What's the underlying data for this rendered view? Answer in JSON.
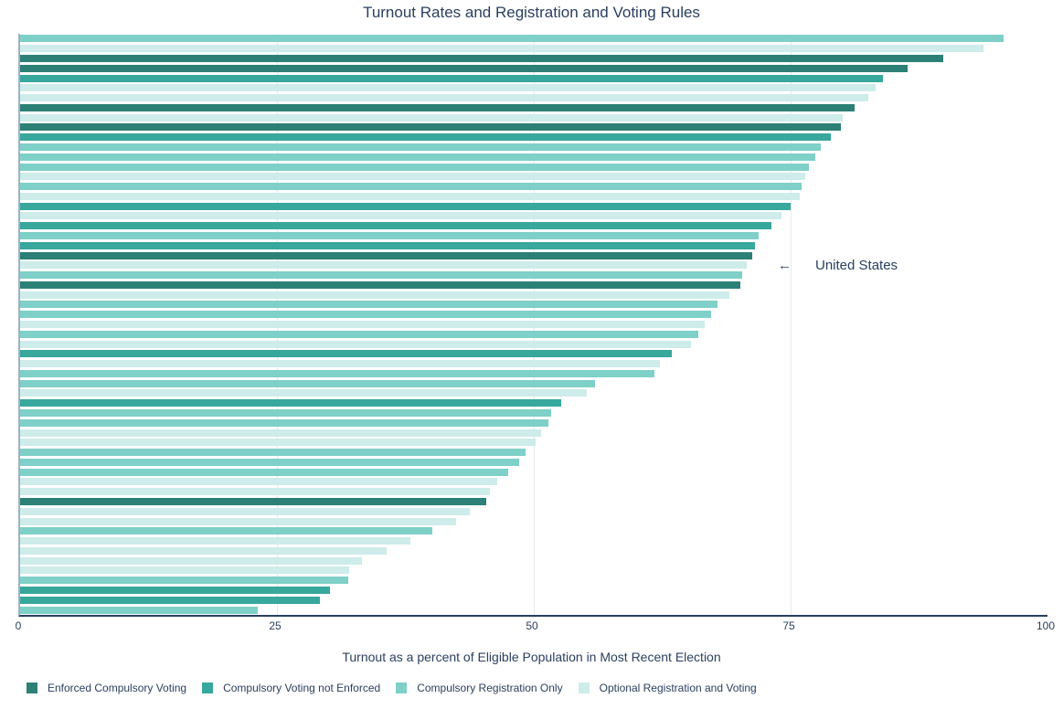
{
  "title": "Turnout Rates and Registration and Voting Rules",
  "annotation": {
    "arrow": "←",
    "label": "United States"
  },
  "x_axis": {
    "title": "Turnout as a percent of Eligible Population in Most Recent Election",
    "tick_labels": [
      "0",
      "25",
      "50",
      "75",
      "100"
    ],
    "tick_values": [
      0,
      25,
      50,
      75,
      100
    ]
  },
  "legend": [
    {
      "key": "c1",
      "label": "Enforced Compulsory Voting",
      "color": "#2c8076"
    },
    {
      "key": "c2",
      "label": "Compulsory Voting not Enforced",
      "color": "#38a79c"
    },
    {
      "key": "c3",
      "label": "Compulsory Registration Only",
      "color": "#7ed0c8"
    },
    {
      "key": "c4",
      "label": "Optional Registration and Voting",
      "color": "#cdecea"
    }
  ],
  "colors": {
    "text": "#2a3f5f",
    "axis_line": "#2a3f5f",
    "y_axis_line": "#9fb0c6",
    "gridline": "#e7e9ec",
    "background": "#ffffff"
  },
  "chart_data": {
    "type": "bar",
    "orientation": "horizontal",
    "title": "Turnout Rates and Voting Rules by country (bars unlabeled, sorted descending)",
    "xlabel": "Turnout as a percent of Eligible Population in Most Recent Election",
    "ylabel": "",
    "xlim": [
      0,
      100
    ],
    "x_ticks": [
      0,
      25,
      50,
      75,
      100
    ],
    "grid": "vertical gridlines at 25, 50, 75",
    "legend_position": "bottom",
    "annotated_bar_index": 23,
    "annotated_bar_label": "United States",
    "groups": {
      "c1": "Enforced Compulsory Voting",
      "c2": "Compulsory Voting not Enforced",
      "c3": "Compulsory Registration Only",
      "c4": "Optional Registration and Voting"
    },
    "bars": [
      {
        "value": 95.7,
        "group": "c3"
      },
      {
        "value": 93.8,
        "group": "c4"
      },
      {
        "value": 89.9,
        "group": "c1"
      },
      {
        "value": 86.4,
        "group": "c1"
      },
      {
        "value": 84.0,
        "group": "c2"
      },
      {
        "value": 83.3,
        "group": "c4"
      },
      {
        "value": 82.6,
        "group": "c4"
      },
      {
        "value": 81.2,
        "group": "c1"
      },
      {
        "value": 80.1,
        "group": "c4"
      },
      {
        "value": 79.9,
        "group": "c1"
      },
      {
        "value": 78.9,
        "group": "c2"
      },
      {
        "value": 77.9,
        "group": "c3"
      },
      {
        "value": 77.4,
        "group": "c3"
      },
      {
        "value": 76.8,
        "group": "c3"
      },
      {
        "value": 76.4,
        "group": "c4"
      },
      {
        "value": 76.1,
        "group": "c3"
      },
      {
        "value": 75.9,
        "group": "c4"
      },
      {
        "value": 75.0,
        "group": "c2"
      },
      {
        "value": 74.1,
        "group": "c4"
      },
      {
        "value": 73.1,
        "group": "c2"
      },
      {
        "value": 71.9,
        "group": "c3"
      },
      {
        "value": 71.5,
        "group": "c2"
      },
      {
        "value": 71.3,
        "group": "c1"
      },
      {
        "value": 70.7,
        "group": "c4"
      },
      {
        "value": 70.3,
        "group": "c3"
      },
      {
        "value": 70.1,
        "group": "c1"
      },
      {
        "value": 69.0,
        "group": "c4"
      },
      {
        "value": 67.9,
        "group": "c3"
      },
      {
        "value": 67.3,
        "group": "c3"
      },
      {
        "value": 66.6,
        "group": "c4"
      },
      {
        "value": 66.0,
        "group": "c3"
      },
      {
        "value": 65.3,
        "group": "c4"
      },
      {
        "value": 63.4,
        "group": "c2"
      },
      {
        "value": 62.3,
        "group": "c4"
      },
      {
        "value": 61.7,
        "group": "c3"
      },
      {
        "value": 56.0,
        "group": "c3"
      },
      {
        "value": 55.2,
        "group": "c4"
      },
      {
        "value": 52.7,
        "group": "c2"
      },
      {
        "value": 51.7,
        "group": "c3"
      },
      {
        "value": 51.4,
        "group": "c3"
      },
      {
        "value": 50.7,
        "group": "c4"
      },
      {
        "value": 50.2,
        "group": "c4"
      },
      {
        "value": 49.2,
        "group": "c3"
      },
      {
        "value": 48.6,
        "group": "c3"
      },
      {
        "value": 47.5,
        "group": "c3"
      },
      {
        "value": 46.4,
        "group": "c4"
      },
      {
        "value": 45.7,
        "group": "c4"
      },
      {
        "value": 45.4,
        "group": "c1"
      },
      {
        "value": 43.8,
        "group": "c4"
      },
      {
        "value": 42.4,
        "group": "c4"
      },
      {
        "value": 40.1,
        "group": "c3"
      },
      {
        "value": 38.0,
        "group": "c4"
      },
      {
        "value": 35.7,
        "group": "c4"
      },
      {
        "value": 33.3,
        "group": "c4"
      },
      {
        "value": 32.0,
        "group": "c4"
      },
      {
        "value": 31.9,
        "group": "c3"
      },
      {
        "value": 30.2,
        "group": "c2"
      },
      {
        "value": 29.2,
        "group": "c2"
      },
      {
        "value": 23.1,
        "group": "c3"
      }
    ]
  }
}
